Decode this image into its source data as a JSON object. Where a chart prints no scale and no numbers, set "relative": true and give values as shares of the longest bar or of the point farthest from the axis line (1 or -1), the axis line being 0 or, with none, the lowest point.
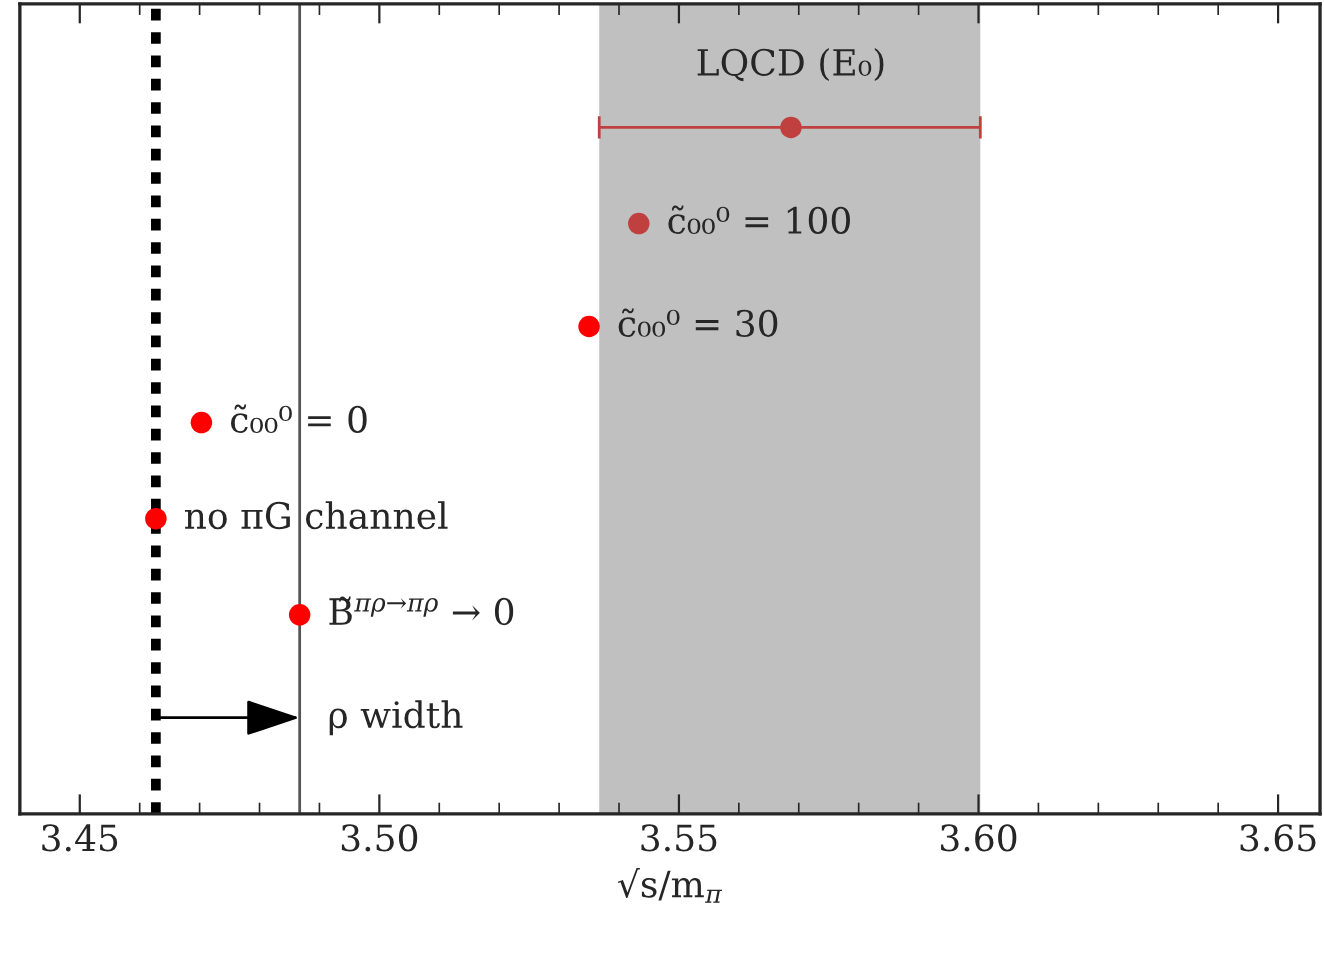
{
  "chart_data": {
    "type": "scatter",
    "xlabel": "√s/m$_{π}$",
    "relative": true,
    "x": [
      3.5687,
      3.5433,
      3.535,
      3.4703,
      3.4627,
      3.4867
    ],
    "series": [
      {
        "colors": [
          "#c04040",
          "#c04040",
          "#ff0000",
          "#ff0000",
          "#ff0000",
          "#ff0000"
        ],
        "values": [
          1,
          0.86,
          0.71,
          0.57,
          0.43,
          0.29
        ],
        "xerrors": [
          [
            3.5367,
            3.6003
          ],
          null,
          null,
          null,
          null,
          null
        ]
      }
    ],
    "xlim": [
      3.44,
      3.657
    ],
    "xticks": [
      {
        "value": 3.45,
        "label": "3.45"
      },
      {
        "value": 3.5,
        "label": "3.50"
      },
      {
        "value": 3.55,
        "label": "3.55"
      },
      {
        "value": 3.6,
        "label": "3.60"
      },
      {
        "value": 3.65,
        "label": "3.65"
      }
    ],
    "tick_labels": "x",
    "marker": "circle",
    "grid": false,
    "legend": false,
    "bands": [
      {
        "axis": "x",
        "from": 3.5367,
        "to": 3.6003,
        "color": "#c0c0c0"
      }
    ],
    "ref_lines": [
      {
        "axis": "x",
        "value": 3.4867,
        "color": "#555555",
        "line_style": "solid"
      },
      {
        "axis": "x",
        "value": 3.4627,
        "color": "#000000",
        "line_style": "dashed"
      }
    ],
    "annotations": [
      {
        "text": "LQCD (E₀)",
        "x": 3.5687,
        "y": 1
      },
      {
        "text": "c̃₀₀⁰ = 100",
        "x": 3.5433,
        "y": 0.86
      },
      {
        "text": "c̃₀₀⁰ = 30",
        "x": 3.535,
        "y": 0.71
      },
      {
        "text": "c̃₀₀⁰ = 0",
        "x": 3.4703,
        "y": 0.57
      },
      {
        "text": "no πG channel",
        "x": 3.4627,
        "y": 0.43
      },
      {
        "text": "B̃$^{πρ→πρ}$ → 0",
        "x": 3.4867,
        "y": 0.29
      },
      {
        "text": "ρ width",
        "x": 3.4867,
        "y": 0.14
      }
    ]
  }
}
